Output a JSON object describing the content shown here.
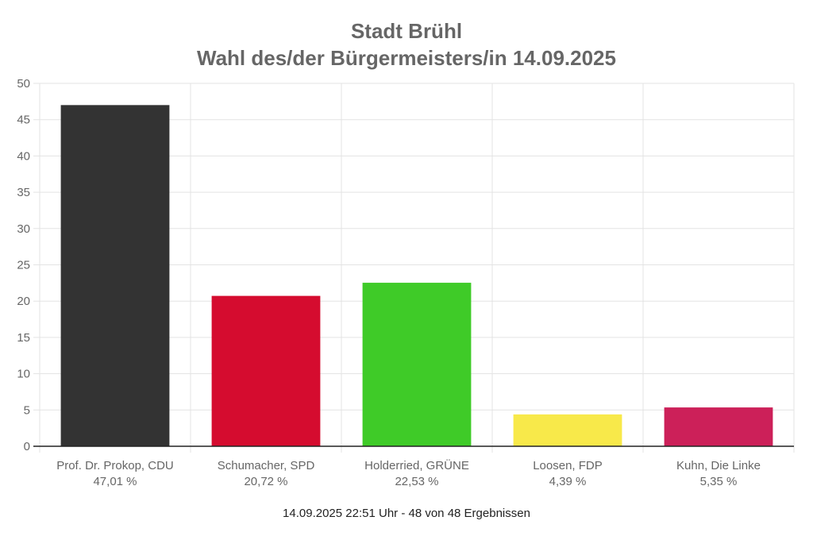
{
  "chart_data": {
    "type": "bar",
    "title": "Stadt Brühl",
    "subtitle": "Wahl des/der Bürgermeisters/in 14.09.2025",
    "categories": [
      "Prof. Dr. Prokop, CDU",
      "Schumacher, SPD",
      "Holderried, GRÜNE",
      "Loosen, FDP",
      "Kuhn, Die Linke"
    ],
    "value_labels": [
      "47,01 %",
      "20,72 %",
      "22,53 %",
      "4,39 %",
      "5,35 %"
    ],
    "values": [
      47.01,
      20.72,
      22.53,
      4.39,
      5.35
    ],
    "colors": [
      "#333333",
      "#d50c2f",
      "#3fcb28",
      "#f8e94a",
      "#cc2059"
    ],
    "ylim": [
      0,
      50
    ],
    "yticks": [
      "0",
      "5",
      "10",
      "15",
      "20",
      "25",
      "30",
      "35",
      "40",
      "45",
      "50"
    ],
    "grid": true,
    "footer": "14.09.2025 22:51 Uhr - 48 von 48 Ergebnissen"
  }
}
